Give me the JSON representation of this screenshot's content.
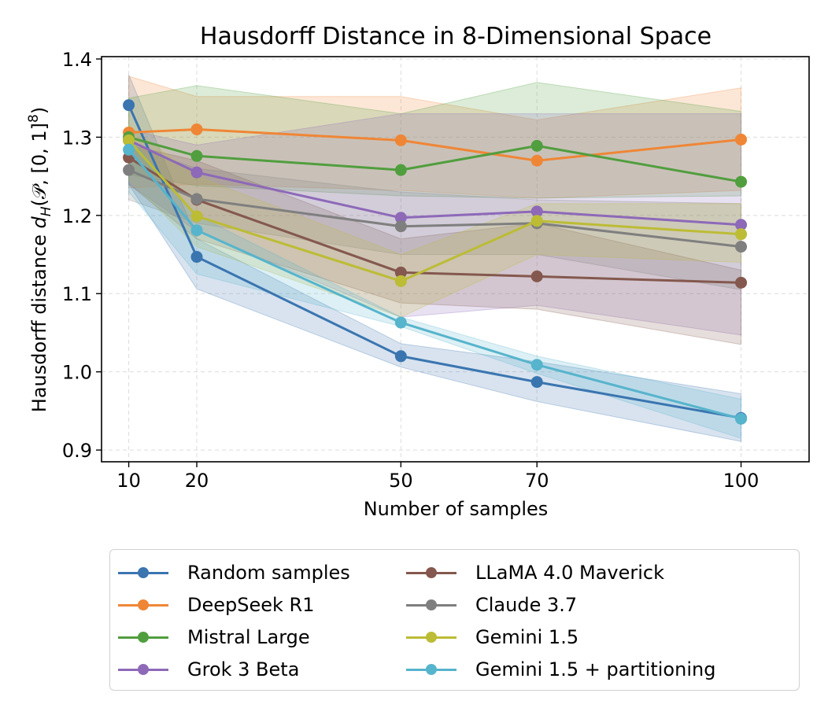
{
  "chart_data": {
    "type": "line",
    "title": "Hausdorff Distance in 8-Dimensional Space",
    "xlabel": "Number of samples",
    "ylabel_prefix": "Hausdorff distance ",
    "ylabel_math": "d",
    "ylabel_sub": "H",
    "ylabel_suffix": "(𝒫, [0, 1]",
    "ylabel_sup": "8",
    "ylabel_close": ")",
    "x": [
      10,
      20,
      50,
      70,
      100
    ],
    "xticks": [
      "10",
      "20",
      "50",
      "70",
      "100"
    ],
    "xlim": [
      6,
      110
    ],
    "ylim": [
      0.885,
      1.403
    ],
    "yticks": [
      "0.9",
      "1.0",
      "1.1",
      "1.2",
      "1.3",
      "1.4"
    ],
    "ytick_values": [
      0.9,
      1.0,
      1.1,
      1.2,
      1.3,
      1.4
    ],
    "grid": true,
    "legend_position": "below",
    "series": [
      {
        "name": "Random samples",
        "color": "#3a75b0",
        "values": [
          1.341,
          1.147,
          1.02,
          0.987,
          0.941
        ],
        "lower": [
          1.24,
          1.106,
          1.006,
          0.962,
          0.911
        ],
        "upper": [
          1.38,
          1.17,
          1.036,
          1.013,
          0.972
        ]
      },
      {
        "name": "DeepSeek R1",
        "color": "#ef8636",
        "values": [
          1.306,
          1.31,
          1.296,
          1.27,
          1.297
        ],
        "lower": [
          1.235,
          1.24,
          1.232,
          1.222,
          1.232
        ],
        "upper": [
          1.378,
          1.352,
          1.352,
          1.322,
          1.363
        ]
      },
      {
        "name": "Mistral Large",
        "color": "#519e3e",
        "values": [
          1.3,
          1.276,
          1.258,
          1.289,
          1.243
        ],
        "lower": [
          1.252,
          1.238,
          1.225,
          1.222,
          1.225
        ],
        "upper": [
          1.35,
          1.366,
          1.33,
          1.37,
          1.333
        ]
      },
      {
        "name": "Grok 3 Beta",
        "color": "#8d69b8",
        "values": [
          1.296,
          1.255,
          1.197,
          1.205,
          1.188
        ],
        "lower": [
          1.24,
          1.18,
          1.07,
          1.085,
          1.047
        ],
        "upper": [
          1.31,
          1.29,
          1.33,
          1.33,
          1.33
        ]
      },
      {
        "name": "LLaMA 4.0 Maverick",
        "color": "#84584e",
        "values": [
          1.274,
          1.22,
          1.127,
          1.122,
          1.114
        ],
        "lower": [
          1.24,
          1.17,
          1.088,
          1.08,
          1.035
        ],
        "upper": [
          1.29,
          1.27,
          1.17,
          1.19,
          1.13
        ]
      },
      {
        "name": "Claude 3.7",
        "color": "#7f7f7f",
        "values": [
          1.258,
          1.221,
          1.186,
          1.19,
          1.16
        ],
        "lower": [
          1.22,
          1.19,
          1.15,
          1.15,
          1.105
        ],
        "upper": [
          1.29,
          1.26,
          1.23,
          1.22,
          1.215
        ]
      },
      {
        "name": "Gemini 1.5",
        "color": "#bcbc35",
        "values": [
          1.296,
          1.199,
          1.116,
          1.193,
          1.176
        ],
        "lower": [
          1.245,
          1.16,
          1.07,
          1.15,
          1.14
        ],
        "upper": [
          1.315,
          1.25,
          1.15,
          1.215,
          1.215
        ]
      },
      {
        "name": "Gemini 1.5 + partitioning",
        "color": "#56b4cc",
        "values": [
          1.284,
          1.181,
          1.063,
          1.009,
          0.94
        ],
        "lower": [
          1.23,
          1.125,
          1.058,
          0.998,
          0.915
        ],
        "upper": [
          1.3,
          1.2,
          1.07,
          1.02,
          0.965
        ]
      }
    ]
  }
}
